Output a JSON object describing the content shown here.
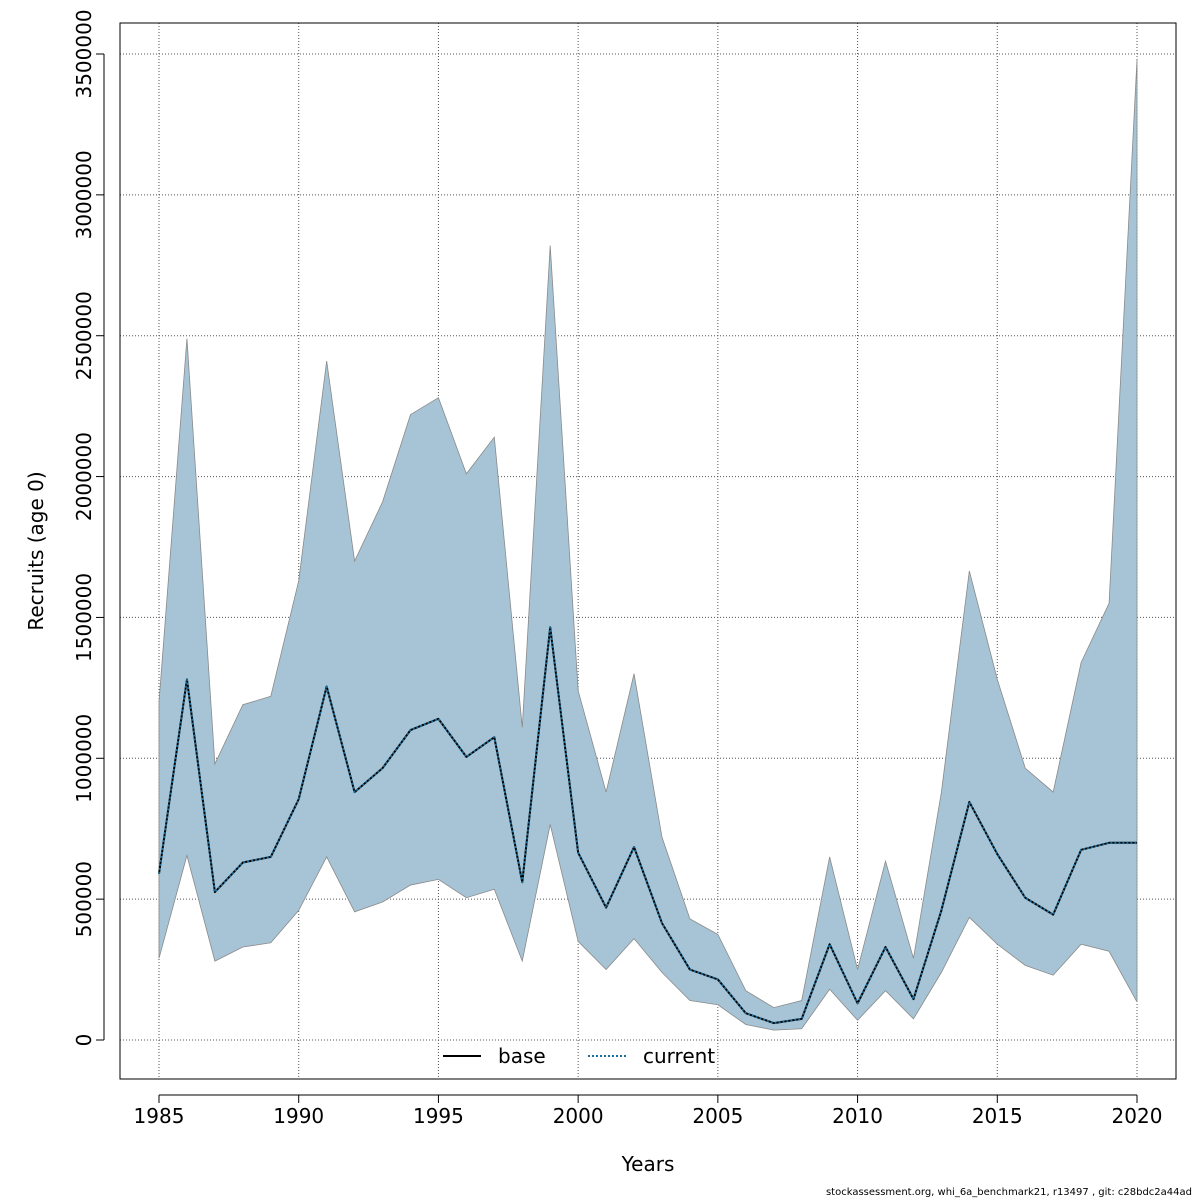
{
  "chart_data": {
    "type": "area",
    "xlabel": "Years",
    "ylabel": "Recruits (age 0)",
    "xlim": [
      1985,
      2020
    ],
    "ylim": [
      0,
      3500000
    ],
    "x_ticks": [
      1985,
      1990,
      1995,
      2000,
      2005,
      2010,
      2015,
      2020
    ],
    "y_ticks": [
      0,
      500000,
      1000000,
      1500000,
      2000000,
      2500000,
      3000000,
      3500000
    ],
    "x_tick_labels": [
      "1985",
      "1990",
      "1995",
      "2000",
      "2005",
      "2010",
      "2015",
      "2020"
    ],
    "y_tick_labels": [
      "0",
      "500000",
      "1000000",
      "1500000",
      "2000000",
      "2500000",
      "3000000",
      "3500000"
    ],
    "grid": true,
    "legend_position": "bottom",
    "x": [
      1985,
      1986,
      1987,
      1988,
      1989,
      1990,
      1991,
      1992,
      1993,
      1994,
      1995,
      1996,
      1997,
      1998,
      1999,
      2000,
      2001,
      2002,
      2003,
      2004,
      2005,
      2006,
      2007,
      2008,
      2009,
      2010,
      2011,
      2012,
      2013,
      2014,
      2015,
      2016,
      2017,
      2018,
      2019,
      2020
    ],
    "band": {
      "color": "#a6c4d5",
      "edge_color": "#8a8a8a",
      "upper": [
        1200000,
        2490000,
        980000,
        1190000,
        1220000,
        1630000,
        2410000,
        1700000,
        1910000,
        2220000,
        2280000,
        2010000,
        2140000,
        1110000,
        2820000,
        1240000,
        880000,
        1300000,
        720000,
        430000,
        375000,
        175000,
        115000,
        140000,
        650000,
        250000,
        635000,
        290000,
        880000,
        1665000,
        1280000,
        965000,
        880000,
        1340000,
        1550000,
        3480000
      ],
      "lower": [
        290000,
        655000,
        280000,
        330000,
        345000,
        460000,
        650000,
        455000,
        490000,
        550000,
        570000,
        505000,
        535000,
        280000,
        765000,
        350000,
        250000,
        360000,
        240000,
        140000,
        125000,
        55000,
        35000,
        40000,
        180000,
        70000,
        175000,
        75000,
        240000,
        435000,
        340000,
        265000,
        230000,
        340000,
        315000,
        135000
      ]
    },
    "series": [
      {
        "name": "base",
        "color": "#000000",
        "style": "solid",
        "values": [
          590000,
          1280000,
          525000,
          630000,
          650000,
          855000,
          1255000,
          880000,
          965000,
          1100000,
          1140000,
          1005000,
          1075000,
          560000,
          1465000,
          665000,
          470000,
          685000,
          415000,
          250000,
          215000,
          95000,
          60000,
          75000,
          340000,
          130000,
          330000,
          145000,
          460000,
          845000,
          660000,
          505000,
          445000,
          675000,
          700000,
          700000
        ]
      },
      {
        "name": "current",
        "color": "#1a6e9e",
        "style": "dotted",
        "values": [
          590000,
          1280000,
          525000,
          630000,
          650000,
          855000,
          1255000,
          880000,
          965000,
          1100000,
          1140000,
          1005000,
          1075000,
          560000,
          1465000,
          665000,
          470000,
          685000,
          415000,
          250000,
          215000,
          95000,
          60000,
          75000,
          340000,
          130000,
          330000,
          145000,
          460000,
          845000,
          660000,
          505000,
          445000,
          675000,
          700000,
          700000
        ]
      }
    ]
  },
  "footer_text": "stockassessment.org, whi_6a_benchmark21, r13497 , git: c28bdc2a44ad"
}
